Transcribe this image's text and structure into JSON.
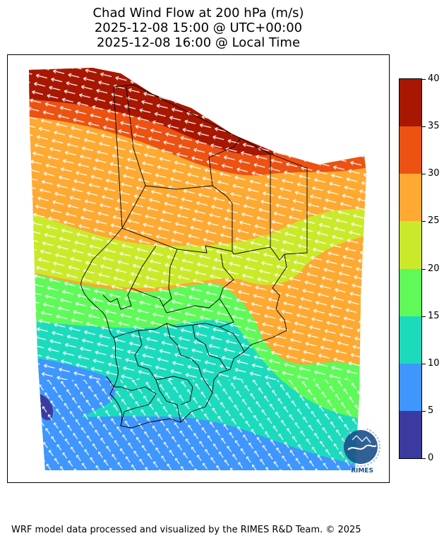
{
  "title": {
    "line1": "Chad Wind Flow at 200 hPa (m/s)",
    "line2": "2025-12-08 15:00 @ UTC+00:00",
    "line3": "2025-12-08 16:00 @ Local Time"
  },
  "colorbar": {
    "levels": [
      "0",
      "5",
      "10",
      "15",
      "20",
      "25",
      "30",
      "35",
      "40"
    ],
    "colors": [
      "#3b3aa0",
      "#3f96fc",
      "#1cdbbd",
      "#5ffa5a",
      "#cbe92b",
      "#fda932",
      "#ec5212",
      "#a71702"
    ]
  },
  "logo": {
    "text": "RIMES"
  },
  "footer": "WRF model data processed and visualized by the RIMES R&D Team. © 2025"
}
